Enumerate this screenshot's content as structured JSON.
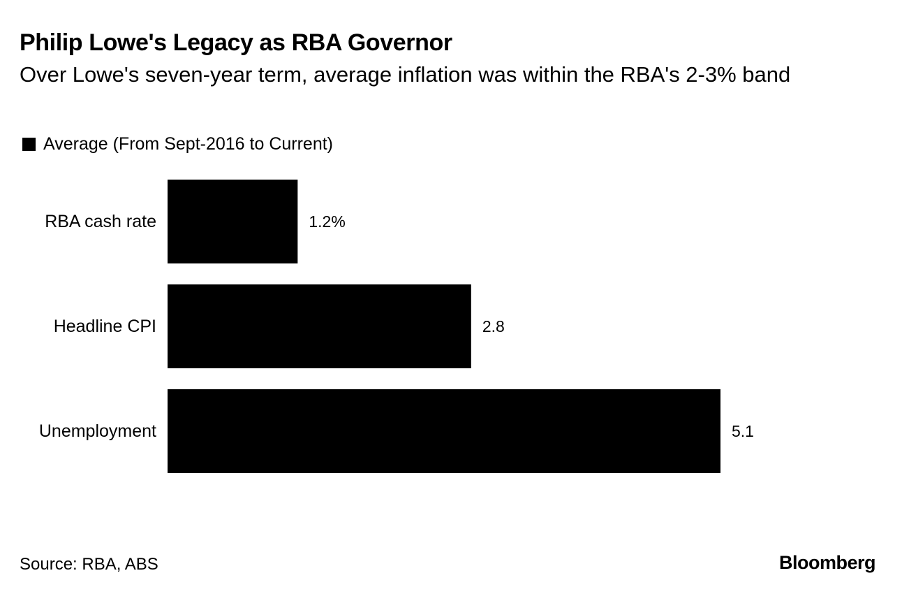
{
  "header": {
    "title": "Philip Lowe's Legacy as RBA Governor",
    "subtitle": "Over Lowe's seven-year term, average inflation was within the RBA's 2-3% band"
  },
  "legend": {
    "label": "Average (From Sept-2016 to Current)",
    "color": "#000000"
  },
  "chart_data": {
    "type": "bar",
    "orientation": "horizontal",
    "title": "Philip Lowe's Legacy as RBA Governor",
    "subtitle": "Over Lowe's seven-year term, average inflation was within the RBA's 2-3% band",
    "categories": [
      "RBA cash rate",
      "Headline CPI",
      "Unemployment"
    ],
    "series": [
      {
        "name": "Average (From Sept-2016 to Current)",
        "values": [
          1.2,
          2.8,
          5.1
        ],
        "labels": [
          "1.2%",
          "2.8",
          "5.1"
        ],
        "color": "#000000"
      }
    ],
    "xlim": [
      0,
      5.1
    ],
    "xlabel": "",
    "ylabel": "",
    "grid": false,
    "legend_position": "top-left"
  },
  "footer": {
    "source": "Source: RBA, ABS",
    "brand": "Bloomberg"
  }
}
